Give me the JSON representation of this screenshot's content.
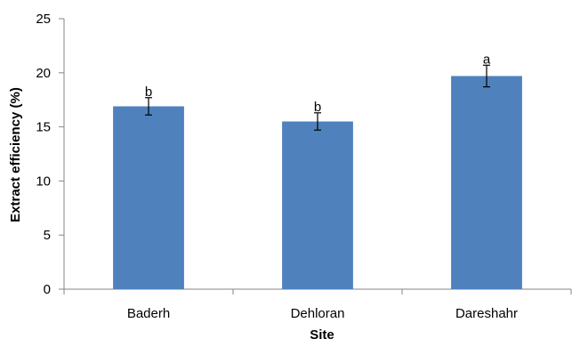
{
  "chart_data": {
    "type": "bar",
    "title": "",
    "xlabel": "Site",
    "ylabel": "Extract efficiency (%)",
    "ylim": [
      0,
      25
    ],
    "yticks": [
      0,
      5,
      10,
      15,
      20,
      25
    ],
    "grid": false,
    "legend": "none",
    "categories": [
      "Baderh",
      "Dehloran",
      "Dareshahr"
    ],
    "series": [
      {
        "values": [
          16.9,
          15.5,
          19.7
        ],
        "error": [
          0.8,
          0.8,
          1.0
        ],
        "significance": [
          "b",
          "b",
          "a"
        ],
        "color": "#4f81bd"
      }
    ]
  }
}
